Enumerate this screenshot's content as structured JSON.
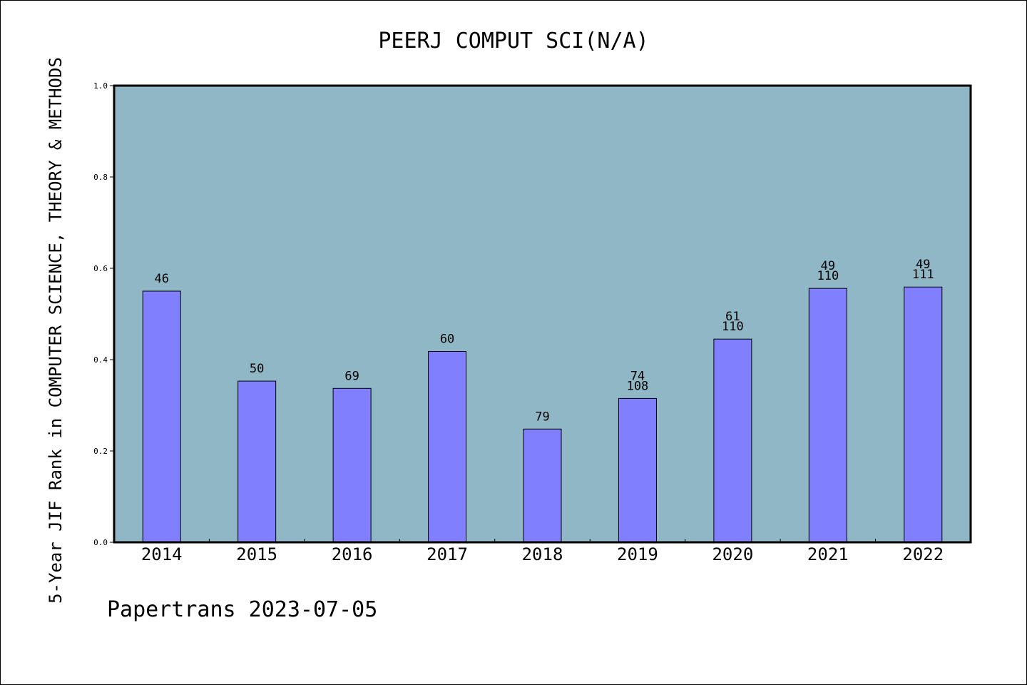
{
  "chart_data": {
    "type": "bar",
    "title": "PEERJ COMPUT SCI(N/A)",
    "ylabel": "5-Year JIF Rank in COMPUTER SCIENCE, THEORY & METHODS",
    "xlabel": "",
    "ylim": [
      0,
      1.0
    ],
    "yticks": [
      "0.0",
      "0.2",
      "0.4",
      "0.6",
      "0.8",
      "1.0"
    ],
    "categories": [
      "2014",
      "2015",
      "2016",
      "2017",
      "2018",
      "2019",
      "2020",
      "2021",
      "2022"
    ],
    "values": [
      0.55,
      0.353,
      0.337,
      0.418,
      0.248,
      0.315,
      0.445,
      0.556,
      0.559
    ],
    "annotations": [
      [
        "46"
      ],
      [
        "50"
      ],
      [
        "69"
      ],
      [
        "60"
      ],
      [
        "79"
      ],
      [
        "74",
        "108"
      ],
      [
        "61",
        "110"
      ],
      [
        "49",
        "110"
      ],
      [
        "49",
        "111"
      ]
    ],
    "grid": false,
    "colors": {
      "plot_background": "#8fb7c5",
      "bar_fill": "#8080ff",
      "bar_stroke": "#000000"
    }
  },
  "footer": "Papertrans 2023-07-05"
}
